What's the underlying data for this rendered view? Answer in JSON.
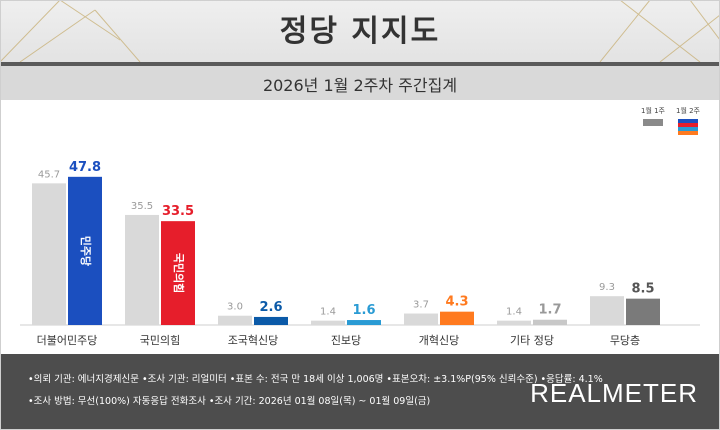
{
  "header": {
    "title": "정당 지지도",
    "subtitle": "2026년 1월 2주차 주간집계"
  },
  "legend": {
    "prev_label": "1월 1주",
    "curr_label": "1월 2주"
  },
  "colors": {
    "prev": "#d9d9d9",
    "democratic": "#1b4fbf",
    "ppp": "#e61e2b",
    "rebuild": "#0b5aa8",
    "progressive": "#2a9bd4",
    "reform": "#ff7a1f",
    "other": "#c8c8c8",
    "none": "#7a7a7a"
  },
  "chart_data": {
    "type": "bar",
    "categories": [
      "더불어민주당",
      "국민의힘",
      "조국혁신당",
      "진보당",
      "개혁신당",
      "기타 정당",
      "무당층"
    ],
    "series": [
      {
        "name": "1월 1주",
        "values": [
          45.7,
          35.5,
          3.0,
          1.4,
          3.7,
          1.4,
          9.3
        ]
      },
      {
        "name": "1월 2주",
        "values": [
          47.8,
          33.5,
          2.6,
          1.6,
          4.3,
          1.7,
          8.5
        ]
      }
    ],
    "bar_colors": [
      "#1b4fbf",
      "#e61e2b",
      "#0b5aa8",
      "#2a9bd4",
      "#ff7a1f",
      "#c8c8c8",
      "#7a7a7a"
    ],
    "label_colors": [
      "#1b4fbf",
      "#e61e2b",
      "#0b5aa8",
      "#2a9bd4",
      "#ff7a1f",
      "#999999",
      "#555555"
    ],
    "bar_logos": [
      "민주당",
      "국민의힘",
      "",
      "",
      "",
      "",
      ""
    ],
    "ylim": [
      0,
      50
    ],
    "grid": false,
    "legend_position": "top-right"
  },
  "footer": {
    "line1": "•의뢰 기관: 에너지경제신문  •조사 기관: 리얼미터  •표본 수: 전국 만 18세 이상 1,006명  •표본오차: ±3.1%P(95% 신뢰수준)  •응답률: 4.1%",
    "line2": "•조사 방법: 무선(100%) 자동응답 전화조사  •조사 기간: 2026년 01월 08일(목) ~ 01월 09일(금)",
    "brand": "REALMETER"
  }
}
